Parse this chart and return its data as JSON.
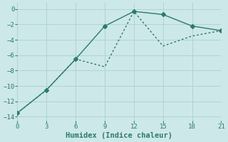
{
  "line1_x": [
    0,
    3,
    6,
    9,
    12,
    15,
    18,
    21
  ],
  "line1_y": [
    -13.5,
    -10.5,
    -6.5,
    -2.2,
    -0.3,
    -0.7,
    -2.2,
    -2.8
  ],
  "line2_x": [
    0,
    3,
    6,
    9,
    12,
    15,
    18,
    21
  ],
  "line2_y": [
    -13.5,
    -10.5,
    -6.5,
    -7.5,
    -0.3,
    -4.8,
    -3.5,
    -2.8
  ],
  "line_color": "#2d7a6e",
  "bg_color": "#cde8e8",
  "grid_color": "#afd4d4",
  "xlabel": "Humidex (Indice chaleur)",
  "xlabel_fontsize": 7.5,
  "xlim": [
    0,
    21
  ],
  "ylim": [
    -14.5,
    0.8
  ],
  "xticks": [
    0,
    3,
    6,
    9,
    12,
    15,
    18,
    21
  ],
  "yticks": [
    0,
    -2,
    -4,
    -6,
    -8,
    -10,
    -12,
    -14
  ],
  "marker": "D",
  "markersize": 3,
  "linewidth": 1.0
}
